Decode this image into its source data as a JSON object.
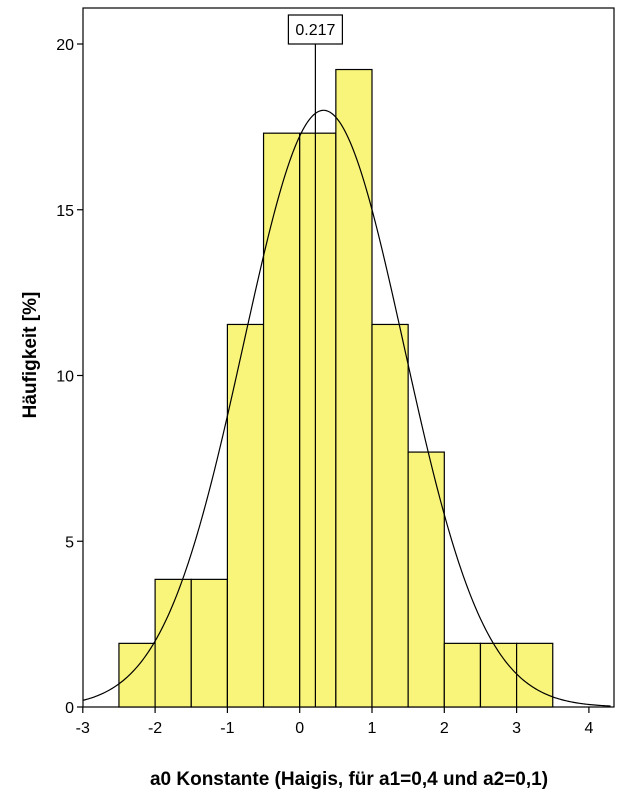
{
  "chart_data": {
    "type": "bar",
    "subtype": "histogram",
    "xlabel": "a0 Konstante (Haigis, für a1=0,4 und a2=0,1)",
    "ylabel": "Häufigkeit [%]",
    "xlim": [
      -3,
      4.3
    ],
    "ylim": [
      0,
      21
    ],
    "x_ticks": [
      "-3",
      "-2",
      "-1",
      "0",
      "1",
      "2",
      "3",
      "4"
    ],
    "y_ticks": [
      "0",
      "5",
      "10",
      "15",
      "20"
    ],
    "bin_width": 0.5,
    "bins": [
      {
        "start": -2.5,
        "end": -2.0,
        "value": 1.92
      },
      {
        "start": -2.0,
        "end": -1.5,
        "value": 3.85
      },
      {
        "start": -1.5,
        "end": -1.0,
        "value": 3.85
      },
      {
        "start": -1.0,
        "end": -0.5,
        "value": 11.54
      },
      {
        "start": -0.5,
        "end": 0.0,
        "value": 17.31
      },
      {
        "start": 0.0,
        "end": 0.5,
        "value": 17.31
      },
      {
        "start": 0.5,
        "end": 1.0,
        "value": 19.23
      },
      {
        "start": 1.0,
        "end": 1.5,
        "value": 11.54
      },
      {
        "start": 1.5,
        "end": 2.0,
        "value": 7.69
      },
      {
        "start": 2.0,
        "end": 2.5,
        "value": 1.92
      },
      {
        "start": 2.5,
        "end": 3.0,
        "value": 1.92
      },
      {
        "start": 3.0,
        "end": 3.5,
        "value": 1.92
      }
    ],
    "normal_curve": {
      "mean": 0.33,
      "sd": 1.11,
      "peak": 18.0
    },
    "reference_line": {
      "x": 0.217,
      "label": "0.217"
    },
    "colors": {
      "bar_fill": "#f9f47a",
      "bar_stroke": "#000000",
      "curve": "#000000",
      "background": "#ffffff"
    },
    "grid": false,
    "legend": "none"
  }
}
